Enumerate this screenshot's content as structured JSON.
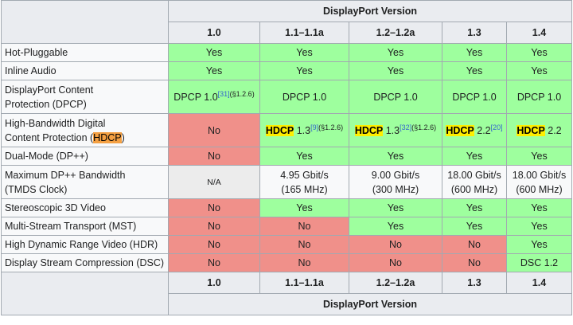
{
  "header": {
    "title": "DisplayPort Version",
    "versions": [
      "1.0",
      "1.1–1.1a",
      "1.2–1.2a",
      "1.3",
      "1.4"
    ]
  },
  "rows": {
    "hot_pluggable": {
      "label": "Hot-Pluggable",
      "values": [
        "Yes",
        "Yes",
        "Yes",
        "Yes",
        "Yes"
      ]
    },
    "inline_audio": {
      "label": "Inline Audio",
      "values": [
        "Yes",
        "Yes",
        "Yes",
        "Yes",
        "Yes"
      ]
    },
    "dpcp": {
      "label_line1": "DisplayPort Content",
      "label_line2": "Protection (DPCP)",
      "v1": "DPCP 1.0",
      "v1_ref": "[31]",
      "v1_sec": "(§1.2.6)",
      "v2": "DPCP 1.0",
      "v3": "DPCP 1.0",
      "v4": "DPCP 1.0",
      "v5": "DPCP 1.0"
    },
    "hdcp": {
      "label_line1": "High-Bandwidth Digital",
      "label_line2_prefix": "Content Protection (",
      "label_line2_hl": "HDCP",
      "label_line2_suffix": ")",
      "v1": "No",
      "hdcp_word": "HDCP",
      "v2_ver": " 1.3",
      "v2_ref": "[9]",
      "v2_sec": "(§1.2.6)",
      "v3_ver": " 1.3",
      "v3_ref": "[32]",
      "v3_sec": "(§1.2.6)",
      "v4_ver": " 2.2",
      "v4_ref": "[20]",
      "v5_ver": " 2.2"
    },
    "dual_mode": {
      "label": "Dual-Mode (DP++)",
      "values": [
        "No",
        "Yes",
        "Yes",
        "Yes",
        "Yes"
      ]
    },
    "dpp_bandwidth": {
      "label_line1": "Maximum DP++ Bandwidth",
      "label_line2": "(TMDS Clock)",
      "v1": "N/A",
      "v2_line1": "4.95 Gbit/s",
      "v2_line2": "(165 MHz)",
      "v3_line1": "9.00 Gbit/s",
      "v3_line2": "(300 MHz)",
      "v4_line1": "18.00 Gbit/s",
      "v4_line2": "(600 MHz)",
      "v5_line1": "18.00 Gbit/s",
      "v5_line2": "(600 MHz)"
    },
    "stereo3d": {
      "label": "Stereoscopic 3D Video",
      "values": [
        "No",
        "Yes",
        "Yes",
        "Yes",
        "Yes"
      ]
    },
    "mst": {
      "label": "Multi-Stream Transport (MST)",
      "values": [
        "No",
        "No",
        "Yes",
        "Yes",
        "Yes"
      ]
    },
    "hdr": {
      "label": "High Dynamic Range Video (HDR)",
      "values": [
        "No",
        "No",
        "No",
        "No",
        "Yes"
      ]
    },
    "dsc": {
      "label": "Display Stream Compression (DSC)",
      "values": [
        "No",
        "No",
        "No",
        "No",
        "DSC 1.2"
      ]
    }
  },
  "colors": {
    "yes": "#9eff9e",
    "no": "#f0908a",
    "na": "#ececec",
    "header": "#eaecf0",
    "highlight": "#ffee00",
    "link": "#3366cc"
  }
}
